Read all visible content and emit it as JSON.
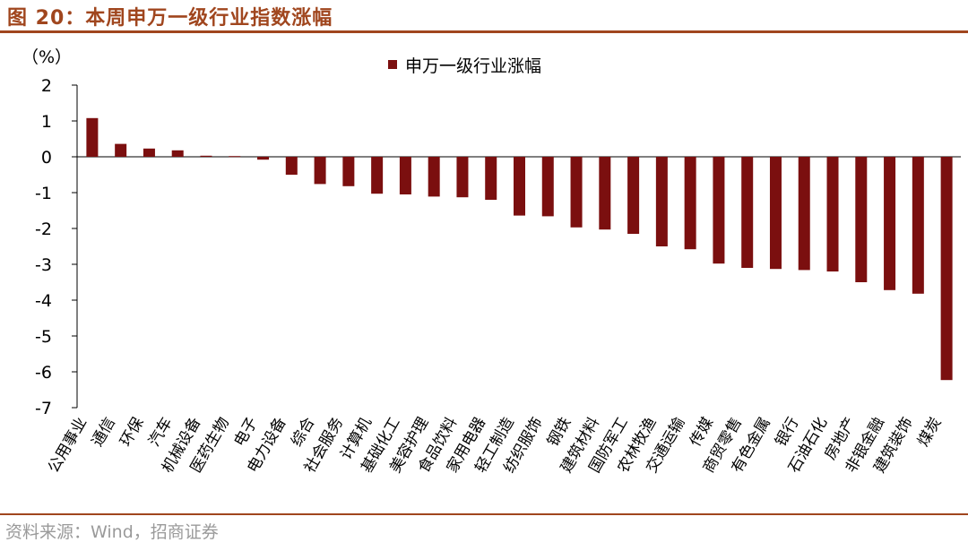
{
  "figure": {
    "title": "图 20：本周申万一级行业指数涨幅",
    "source": "资料来源：Wind，招商证券"
  },
  "chart_data": {
    "type": "bar",
    "ylabel": "（%）",
    "ylim": [
      -7,
      2
    ],
    "yticks": [
      2,
      1,
      0,
      -1,
      -2,
      -3,
      -4,
      -5,
      -6,
      -7
    ],
    "grid": false,
    "legend_position": "top-center",
    "bar_color": "#7b0f0f",
    "series": [
      {
        "name": "申万一级行业涨幅",
        "values": [
          1.08,
          0.36,
          0.23,
          0.18,
          0.03,
          0.02,
          -0.08,
          -0.5,
          -0.76,
          -0.82,
          -1.03,
          -1.05,
          -1.11,
          -1.13,
          -1.2,
          -1.64,
          -1.66,
          -1.97,
          -2.03,
          -2.15,
          -2.5,
          -2.58,
          -2.98,
          -3.1,
          -3.13,
          -3.16,
          -3.2,
          -3.5,
          -3.72,
          -3.82,
          -6.23
        ]
      }
    ],
    "categories": [
      "公用事业",
      "通信",
      "环保",
      "汽车",
      "机械设备",
      "医药生物",
      "电子",
      "电力设备",
      "综合",
      "社会服务",
      "计算机",
      "基础化工",
      "美容护理",
      "食品饮料",
      "家用电器",
      "轻工制造",
      "纺织服饰",
      "钢铁",
      "建筑材料",
      "国防军工",
      "农林牧渔",
      "交通运输",
      "传媒",
      "商贸零售",
      "有色金属",
      "银行",
      "石油石化",
      "房地产",
      "非银金融",
      "建筑装饰",
      "煤炭"
    ]
  }
}
